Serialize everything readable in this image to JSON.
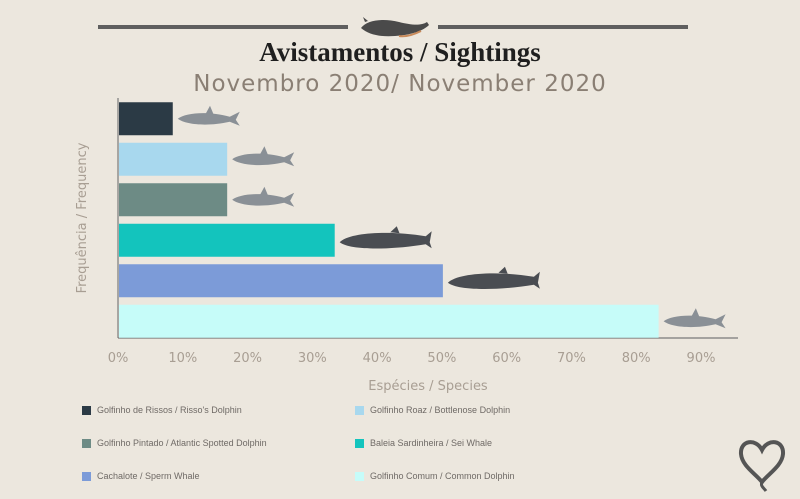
{
  "title": "Avistamentos / Sightings",
  "subtitle": "Novembro 2020/ November 2020",
  "chart_data": {
    "type": "bar",
    "orientation": "horizontal",
    "xlabel": "Espécies / Species",
    "ylabel": "Frequência / Frequency",
    "xlim": [
      0,
      0.95
    ],
    "xticks": [
      "0%",
      "10%",
      "20%",
      "30%",
      "40%",
      "50%",
      "60%",
      "70%",
      "80%",
      "90%"
    ],
    "series": [
      {
        "name": "Golfinho de Rissos / Risso's Dolphin",
        "value": 0.083,
        "color": "#2b3a45",
        "icon": "rissos-dolphin-icon"
      },
      {
        "name": "Golfinho Roaz / Bottlenose Dolphin",
        "value": 0.167,
        "color": "#a8d8ee",
        "icon": "bottlenose-dolphin-icon"
      },
      {
        "name": "Golfinho Pintado / Atlantic Spotted Dolphin",
        "value": 0.167,
        "color": "#6d8b85",
        "icon": "spotted-dolphin-icon"
      },
      {
        "name": "Baleia Sardinheira / Sei Whale",
        "value": 0.333,
        "color": "#13c4bd",
        "icon": "sei-whale-icon"
      },
      {
        "name": "Cachalote / Sperm Whale",
        "value": 0.5,
        "color": "#7c9bd8",
        "icon": "sperm-whale-icon"
      },
      {
        "name": "Golfinho Comum / Common Dolphin",
        "value": 0.833,
        "color": "#c6fcf9",
        "icon": "common-dolphin-icon"
      }
    ]
  }
}
